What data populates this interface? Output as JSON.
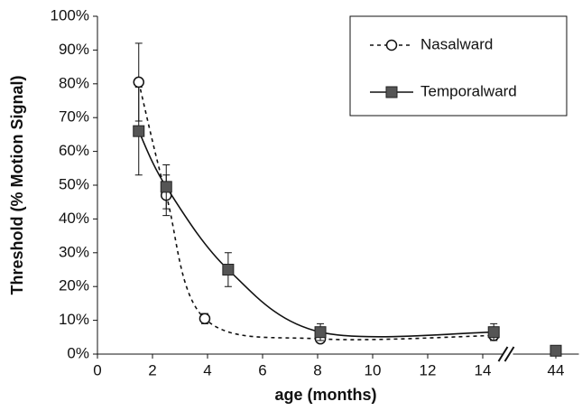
{
  "chart_data": {
    "type": "line",
    "x_label": "age (months)",
    "y_label": "Threshold (% Motion Signal)",
    "xlim": [
      0,
      45
    ],
    "x_break": [
      15,
      43
    ],
    "xticks": [
      0,
      2,
      4,
      6,
      8,
      10,
      12,
      14,
      44
    ],
    "ylim": [
      0,
      100
    ],
    "yticks": [
      {
        "value": 0,
        "label": "0%"
      },
      {
        "value": 10,
        "label": "10%"
      },
      {
        "value": 20,
        "label": "20%"
      },
      {
        "value": 30,
        "label": "30%"
      },
      {
        "value": 40,
        "label": "40%"
      },
      {
        "value": 50,
        "label": "50%"
      },
      {
        "value": 60,
        "label": "60%"
      },
      {
        "value": 70,
        "label": "70%"
      },
      {
        "value": 80,
        "label": "80%"
      },
      {
        "value": 90,
        "label": "90%"
      },
      {
        "value": 100,
        "label": "100%"
      }
    ],
    "legend": "upper right",
    "series": [
      {
        "name": "Nasalward",
        "color": "#111111",
        "marker": "circle",
        "dash": true,
        "x": [
          1.5,
          2.5,
          3.9,
          8.1,
          14.4,
          44
        ],
        "values": [
          80.5,
          47,
          10.5,
          4.5,
          5.5,
          1
        ],
        "errors": [
          11.5,
          6,
          1.5,
          1,
          1.5,
          null
        ]
      },
      {
        "name": "Temporalward",
        "color": "#555555",
        "marker": "square",
        "dash": false,
        "x": [
          1.5,
          2.5,
          4.75,
          8.1,
          14.4,
          44
        ],
        "values": [
          66,
          49.5,
          25,
          6.5,
          6.5,
          1
        ],
        "errors": [
          13,
          6.5,
          5,
          2.5,
          2.5,
          null
        ]
      }
    ]
  }
}
